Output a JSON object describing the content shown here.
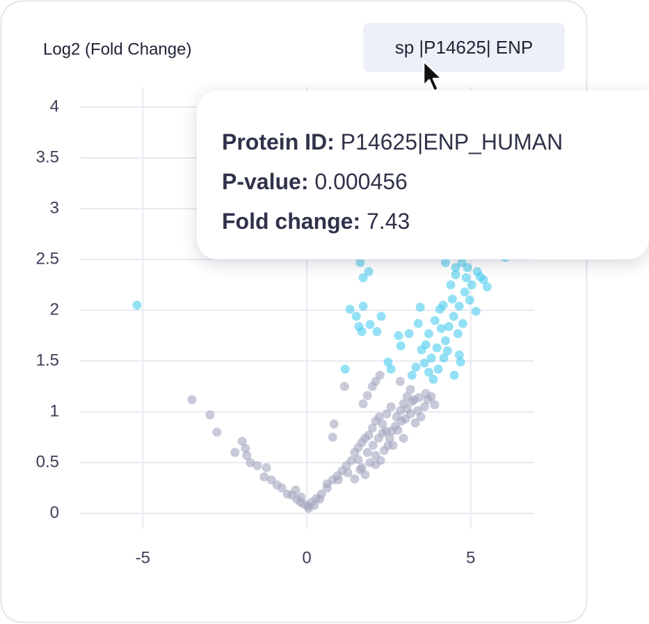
{
  "chart_data": {
    "type": "scatter",
    "ylabel": "Log2 (Fold Change)",
    "xlim": [
      -7,
      7
    ],
    "ylim": [
      0,
      4
    ],
    "xticks": [
      -5,
      0,
      5
    ],
    "yticks": [
      0,
      0.5,
      1,
      1.5,
      2,
      2.5,
      3,
      3.5,
      4
    ],
    "grid": true,
    "series": [
      {
        "color": "#a3a6bf",
        "x": [
          -3.5,
          -2.95,
          -2.74,
          -1.97,
          -2.19,
          -1.87,
          -1.83,
          -1.72,
          -1.51,
          -1.23,
          -1.3,
          -1.08,
          -0.91,
          -0.76,
          -0.59,
          -0.45,
          -0.3,
          -0.19,
          -0.08,
          0.04,
          0.15,
          0.3,
          0.45,
          0.62,
          0.79,
          0.93,
          1.08,
          1.21,
          1.36,
          1.46,
          1.57,
          1.68,
          1.78,
          1.89,
          2.0,
          2.1,
          2.21,
          2.31,
          2.42,
          2.53,
          2.63,
          2.74,
          2.85,
          2.95,
          3.06,
          3.16,
          3.27,
          3.38,
          3.48,
          3.59,
          3.69,
          3.8,
          3.9,
          0.83,
          0.79,
          1.15,
          1.72,
          1.85,
          2.0,
          2.1,
          2.23,
          2.85,
          1.57,
          1.68,
          1.78,
          1.93,
          2.1,
          2.25,
          2.36,
          2.48,
          2.59,
          2.7,
          2.89,
          3.01,
          3.16,
          3.31,
          0.62,
          0.96,
          1.25,
          1.46,
          1.85,
          2.02,
          2.19,
          2.31,
          2.44,
          2.57,
          2.78,
          3.06,
          3.21,
          3.42,
          3.63,
          2.95,
          2.1,
          1.63,
          0.4,
          0.23,
          0.06,
          -0.17,
          -0.34
        ],
        "values": [
          1.12,
          0.97,
          0.8,
          0.71,
          0.6,
          0.64,
          0.57,
          0.5,
          0.47,
          0.45,
          0.36,
          0.33,
          0.28,
          0.25,
          0.19,
          0.18,
          0.14,
          0.11,
          0.09,
          0.07,
          0.11,
          0.15,
          0.19,
          0.25,
          0.33,
          0.37,
          0.42,
          0.47,
          0.52,
          0.6,
          0.65,
          0.7,
          0.74,
          0.77,
          0.84,
          0.91,
          0.95,
          0.88,
          0.81,
          0.74,
          0.67,
          0.95,
          1.01,
          1.08,
          1.15,
          1.22,
          1.12,
          1.01,
          0.95,
          1.05,
          1.12,
          1.15,
          1.07,
          0.88,
          0.75,
          1.25,
          1.08,
          1.16,
          1.25,
          1.3,
          1.36,
          1.3,
          0.53,
          0.45,
          0.38,
          0.5,
          0.57,
          0.52,
          0.62,
          0.67,
          0.81,
          0.86,
          0.91,
          0.93,
          0.98,
          0.89,
          0.29,
          0.33,
          0.4,
          0.34,
          0.6,
          0.67,
          0.74,
          0.79,
          0.98,
          1.05,
          0.82,
          1.03,
          1.1,
          1.14,
          1.18,
          0.74,
          0.48,
          0.43,
          0.14,
          0.08,
          0.05,
          0.16,
          0.23
        ]
      },
      {
        "color": "#4dcdee",
        "x": [
          -5.18,
          1.17,
          1.32,
          1.51,
          1.59,
          1.68,
          1.72,
          1.63,
          1.89,
          1.93,
          1.72,
          2.14,
          2.27,
          2.48,
          2.57,
          2.8,
          2.87,
          3.12,
          3.4,
          3.46,
          3.5,
          3.63,
          3.72,
          3.8,
          3.91,
          3.97,
          4.06,
          4.1,
          4.16,
          4.23,
          4.33,
          4.39,
          4.44,
          4.48,
          4.54,
          4.61,
          4.65,
          4.69,
          4.76,
          4.82,
          4.86,
          4.9,
          4.97,
          5.03,
          5.16,
          5.2,
          5.29,
          5.39,
          5.5,
          3.21,
          3.33,
          3.59,
          3.72,
          3.86,
          4.01,
          4.18,
          4.29,
          4.5,
          4.65,
          4.73,
          4.23,
          4.54,
          6.05
        ],
        "values": [
          2.05,
          1.42,
          2.01,
          1.94,
          1.84,
          1.79,
          2.04,
          2.47,
          2.38,
          1.86,
          2.32,
          1.79,
          1.94,
          1.49,
          1.42,
          1.75,
          1.65,
          1.77,
          1.87,
          2.03,
          1.61,
          1.66,
          1.77,
          1.53,
          1.9,
          1.63,
          2.01,
          1.82,
          2.05,
          1.7,
          1.84,
          2.25,
          2.11,
          1.94,
          2.35,
          1.77,
          2.04,
          1.49,
          1.87,
          2.18,
          2.32,
          2.42,
          2.1,
          2.25,
          1.99,
          2.38,
          2.33,
          2.3,
          2.23,
          1.36,
          1.44,
          1.48,
          1.39,
          1.32,
          1.42,
          1.53,
          1.6,
          1.36,
          1.56,
          2.47,
          2.47,
          2.42,
          2.52
        ]
      }
    ]
  },
  "badge": "sp |P14625| ENP",
  "tooltip": {
    "rows": [
      {
        "label": "Protein ID:",
        "value": "P14625|ENP_HUMAN"
      },
      {
        "label": "P-value:",
        "value": "0.000456"
      },
      {
        "label": "Fold change:",
        "value": "7.43"
      }
    ]
  }
}
